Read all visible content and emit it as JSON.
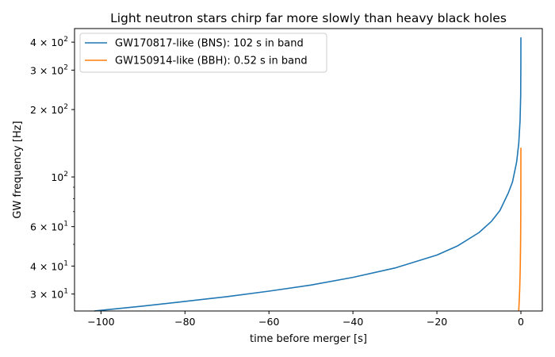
{
  "chart_data": {
    "type": "line",
    "title": "Light neutron stars chirp far more slowly than heavy black holes",
    "xlabel": "time before merger [s]",
    "ylabel": "GW frequency [Hz]",
    "xlim": [
      -106.3,
      5.1
    ],
    "ylim": [
      25.2,
      460
    ],
    "yscale": "log",
    "grid": false,
    "legend_position": "top-left",
    "x_ticks": [
      {
        "value": -100,
        "label": "−100"
      },
      {
        "value": -80,
        "label": "−80"
      },
      {
        "value": -60,
        "label": "−60"
      },
      {
        "value": -40,
        "label": "−40"
      },
      {
        "value": -20,
        "label": "−20"
      },
      {
        "value": 0,
        "label": "0"
      }
    ],
    "y_ticks": [
      {
        "value": 30,
        "base": "3 × 10",
        "exp": "1"
      },
      {
        "value": 40,
        "base": "4 × 10",
        "exp": "1"
      },
      {
        "value": 60,
        "base": "6 × 10",
        "exp": "1"
      },
      {
        "value": 100,
        "base": "10",
        "exp": "2"
      },
      {
        "value": 200,
        "base": "2 × 10",
        "exp": "2"
      },
      {
        "value": 300,
        "base": "3 × 10",
        "exp": "2"
      },
      {
        "value": 400,
        "base": "4 × 10",
        "exp": "2"
      }
    ],
    "y_minor_ticks": [
      50,
      70,
      80,
      90
    ],
    "series": [
      {
        "name": "GW170817-like (BNS): 102 s in band",
        "color": "#1f77b4",
        "x": [
          -101.6,
          -90,
          -80,
          -70,
          -60,
          -50,
          -40,
          -30,
          -20,
          -15,
          -10,
          -7,
          -5,
          -3,
          -2,
          -1,
          -0.5,
          -0.2,
          -0.05,
          -0.01,
          0
        ],
        "y": [
          25.2,
          26.5,
          27.8,
          29.2,
          30.9,
          32.9,
          35.6,
          39.2,
          44.8,
          49.3,
          56.4,
          63.4,
          70.8,
          84.8,
          95.0,
          117,
          142,
          178,
          230,
          320,
          420
        ]
      },
      {
        "name": "GW150914-like (BBH): 0.52 s in band",
        "color": "#ff7f0e",
        "x": [
          -0.52,
          -0.4,
          -0.3,
          -0.2,
          -0.15,
          -0.1,
          -0.07,
          -0.05,
          -0.03,
          -0.02,
          -0.01,
          -0.005,
          0
        ],
        "y": [
          25.2,
          28,
          31,
          36,
          40,
          46,
          52,
          58,
          68,
          77,
          93,
          108,
          135
        ]
      }
    ]
  }
}
